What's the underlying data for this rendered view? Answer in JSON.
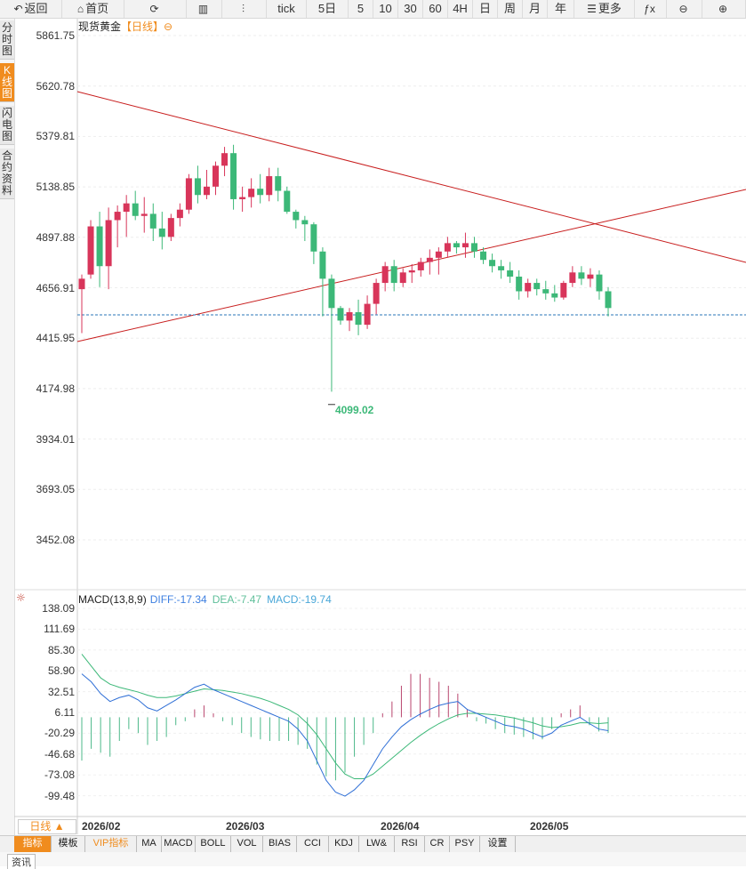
{
  "toolbar": {
    "items": [
      "返回",
      "首页",
      "",
      "",
      "",
      "tick",
      "5日",
      "5",
      "10",
      "30",
      "60",
      "4H",
      "日",
      "周",
      "月",
      "年",
      "更多",
      "",
      "",
      ""
    ]
  },
  "sidebar": {
    "tabs": [
      "分时图",
      "K线图",
      "闪电图",
      "合约资料"
    ],
    "active": 1
  },
  "chart": {
    "title": "现货黄金",
    "period_tag": "【日线】",
    "low_label": "4099.02",
    "y_labels": [
      "5861.75",
      "5620.78",
      "5379.81",
      "5138.85",
      "4897.88",
      "4656.91",
      "4415.95",
      "4174.98",
      "3934.01",
      "3693.05",
      "3452.08"
    ]
  },
  "macd": {
    "title": "MACD(13,8,9)",
    "diff": "DIFF:-17.34",
    "dea": "DEA:-7.47",
    "macd": "MACD:-19.74",
    "y_labels": [
      "138.09",
      "111.69",
      "85.30",
      "58.90",
      "32.51",
      "6.11",
      "-20.29",
      "-46.68",
      "-73.08",
      "-99.48"
    ]
  },
  "x_axis": {
    "period_button": "日线 ▲",
    "dates": [
      "2026/02",
      "2026/03",
      "2026/04",
      "2026/05"
    ]
  },
  "bottom_tabs": [
    "指标",
    "模板",
    "VIP指标",
    "MA",
    "MACD",
    "BOLL",
    "VOL",
    "BIAS",
    "CCI",
    "KDJ",
    "LW&",
    "RSI",
    "CR",
    "PSY",
    "设置"
  ],
  "footer": {
    "tab": "资讯"
  },
  "colors": {
    "up": "#d8355a",
    "down": "#3cb878",
    "accent": "#f08c1e",
    "trend": "#c81e1e"
  },
  "candles": [
    [
      4650,
      4720,
      4440,
      4700
    ],
    [
      4720,
      4980,
      4700,
      4950
    ],
    [
      4950,
      5020,
      4660,
      4760
    ],
    [
      4760,
      5040,
      4650,
      4980
    ],
    [
      4980,
      5050,
      4850,
      5020
    ],
    [
      5020,
      5100,
      4900,
      5060
    ],
    [
      5060,
      5120,
      4980,
      5000
    ],
    [
      5000,
      5090,
      4920,
      5010
    ],
    [
      5010,
      5060,
      4880,
      4940
    ],
    [
      4940,
      5020,
      4840,
      4900
    ],
    [
      4900,
      5010,
      4880,
      4990
    ],
    [
      4990,
      5060,
      4950,
      5030
    ],
    [
      5030,
      5200,
      5010,
      5180
    ],
    [
      5180,
      5240,
      5060,
      5100
    ],
    [
      5100,
      5220,
      5080,
      5140
    ],
    [
      5140,
      5260,
      5100,
      5240
    ],
    [
      5240,
      5330,
      5190,
      5300
    ],
    [
      5300,
      5340,
      5030,
      5080
    ],
    [
      5080,
      5140,
      5020,
      5090
    ],
    [
      5090,
      5180,
      5040,
      5130
    ],
    [
      5130,
      5200,
      5060,
      5100
    ],
    [
      5100,
      5230,
      5070,
      5190
    ],
    [
      5190,
      5230,
      5070,
      5120
    ],
    [
      5120,
      5140,
      5010,
      5020
    ],
    [
      5020,
      5030,
      4940,
      4980
    ],
    [
      4980,
      5000,
      4880,
      4960
    ],
    [
      4960,
      4970,
      4770,
      4830
    ],
    [
      4830,
      4850,
      4520,
      4700
    ],
    [
      4700,
      4720,
      4160,
      4560
    ],
    [
      4560,
      4570,
      4480,
      4500
    ],
    [
      4500,
      4560,
      4450,
      4540
    ],
    [
      4540,
      4600,
      4430,
      4480
    ],
    [
      4480,
      4620,
      4460,
      4580
    ],
    [
      4580,
      4700,
      4530,
      4680
    ],
    [
      4680,
      4780,
      4640,
      4760
    ],
    [
      4760,
      4790,
      4640,
      4680
    ],
    [
      4680,
      4750,
      4660,
      4730
    ],
    [
      4730,
      4770,
      4680,
      4740
    ],
    [
      4740,
      4800,
      4710,
      4780
    ],
    [
      4780,
      4840,
      4720,
      4800
    ],
    [
      4800,
      4850,
      4720,
      4830
    ],
    [
      4830,
      4900,
      4800,
      4870
    ],
    [
      4870,
      4880,
      4820,
      4850
    ],
    [
      4850,
      4920,
      4800,
      4870
    ],
    [
      4870,
      4900,
      4800,
      4830
    ],
    [
      4830,
      4850,
      4770,
      4790
    ],
    [
      4790,
      4820,
      4730,
      4760
    ],
    [
      4760,
      4790,
      4700,
      4740
    ],
    [
      4740,
      4780,
      4680,
      4710
    ],
    [
      4710,
      4740,
      4600,
      4640
    ],
    [
      4640,
      4700,
      4610,
      4680
    ],
    [
      4680,
      4700,
      4620,
      4650
    ],
    [
      4650,
      4690,
      4600,
      4630
    ],
    [
      4630,
      4670,
      4590,
      4610
    ],
    [
      4610,
      4690,
      4600,
      4680
    ],
    [
      4680,
      4760,
      4660,
      4730
    ],
    [
      4730,
      4760,
      4670,
      4700
    ],
    [
      4700,
      4750,
      4660,
      4720
    ],
    [
      4720,
      4740,
      4600,
      4640
    ],
    [
      4640,
      4660,
      4520,
      4560
    ]
  ],
  "macd_series": {
    "diff": [
      55,
      45,
      30,
      20,
      25,
      28,
      22,
      12,
      8,
      15,
      22,
      30,
      38,
      42,
      35,
      30,
      25,
      20,
      15,
      10,
      5,
      0,
      -5,
      -15,
      -30,
      -55,
      -80,
      -95,
      -100,
      -92,
      -80,
      -60,
      -40,
      -25,
      -12,
      -3,
      4,
      10,
      15,
      18,
      20,
      10,
      5,
      0,
      -5,
      -10,
      -12,
      -15,
      -20,
      -25,
      -20,
      -10,
      -5,
      0,
      -8,
      -15,
      -17
    ],
    "dea": [
      80,
      65,
      50,
      42,
      38,
      35,
      32,
      28,
      25,
      25,
      27,
      30,
      33,
      36,
      35,
      34,
      32,
      30,
      27,
      24,
      20,
      15,
      10,
      3,
      -8,
      -22,
      -40,
      -58,
      -72,
      -78,
      -78,
      -72,
      -62,
      -52,
      -42,
      -32,
      -23,
      -15,
      -8,
      -2,
      3,
      5,
      5,
      4,
      3,
      1,
      -1,
      -4,
      -7,
      -11,
      -13,
      -12,
      -10,
      -7,
      -7,
      -8,
      -7
    ],
    "hist": [
      -55,
      -40,
      -45,
      -50,
      -30,
      -15,
      -20,
      -35,
      -30,
      -25,
      -10,
      -5,
      10,
      15,
      5,
      -5,
      -10,
      -20,
      -25,
      -28,
      -30,
      -30,
      -30,
      -35,
      -40,
      -60,
      -75,
      -80,
      -70,
      -50,
      -35,
      -20,
      5,
      20,
      40,
      55,
      55,
      50,
      45,
      40,
      30,
      10,
      -5,
      -8,
      -15,
      -20,
      -22,
      -25,
      -28,
      -28,
      -15,
      5,
      10,
      15,
      -10,
      -18,
      -20
    ]
  }
}
